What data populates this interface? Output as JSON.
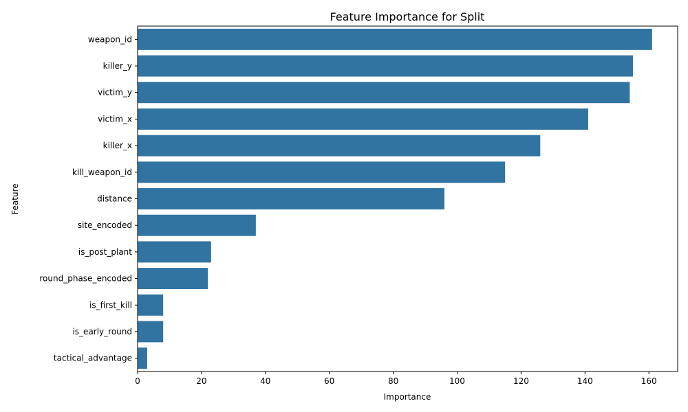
{
  "chart_data": {
    "type": "bar",
    "orientation": "horizontal",
    "title": "Feature Importance for Split",
    "xlabel": "Importance",
    "ylabel": "Feature",
    "xlim": [
      0,
      169
    ],
    "xticks": [
      0,
      20,
      40,
      60,
      80,
      100,
      120,
      140,
      160
    ],
    "grid": false,
    "bar_color": "#3274a1",
    "categories": [
      "weapon_id",
      "killer_y",
      "victim_y",
      "victim_x",
      "killer_x",
      "kill_weapon_id",
      "distance",
      "site_encoded",
      "is_post_plant",
      "round_phase_encoded",
      "is_first_kill",
      "is_early_round",
      "tactical_advantage"
    ],
    "values": [
      161,
      155,
      154,
      141,
      126,
      115,
      96,
      37,
      23,
      22,
      8,
      8,
      3
    ]
  }
}
